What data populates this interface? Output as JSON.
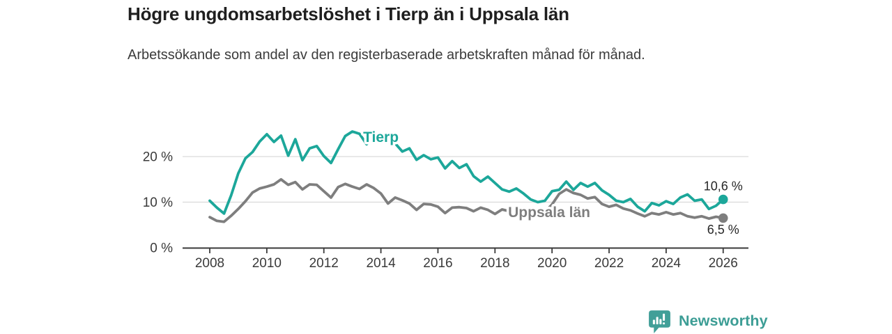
{
  "header": {
    "title": "Högre ungdomsarbetslöshet i Tierp än i Uppsala län",
    "subtitle": "Arbetssökande som andel av den registerbaserade arbetskraften månad för månad."
  },
  "footer": {
    "brand": "Newsworthy"
  },
  "colors": {
    "tierp": "#1CA79A",
    "uppsala": "#7E7E7E",
    "grid": "#D9D9D9",
    "axis": "#3A3A3A",
    "annotation_text": "#262626",
    "brand": "#3C9D95",
    "background": "#FFFFFF"
  },
  "chart_data": {
    "type": "line",
    "title": "Högre ungdomsarbetslöshet i Tierp än i Uppsala län",
    "subtitle": "Arbetssökande som andel av den registerbaserade arbetskraften månad för månad.",
    "xlabel": "",
    "ylabel": "",
    "grid": "horizontal-only",
    "legend_position": "inline-labels",
    "x_start": 2008,
    "x_step": 0.25,
    "x_range": [
      2008,
      2026
    ],
    "ylim": [
      0,
      27
    ],
    "x_ticks": [
      2008,
      2010,
      2012,
      2014,
      2016,
      2018,
      2020,
      2022,
      2024,
      2026
    ],
    "x_tick_labels": [
      "2008",
      "2010",
      "2012",
      "2014",
      "2016",
      "2018",
      "2020",
      "2022",
      "2024",
      "2026"
    ],
    "y_ticks": [
      0,
      10,
      20
    ],
    "y_tick_labels": [
      "0 %",
      "10 %",
      "20 %"
    ],
    "series": [
      {
        "name": "Uppsala län",
        "color": "#7E7E7E",
        "end_label": "6,5 %",
        "end_label_side": "below",
        "label_anchor": {
          "x": 2019.9,
          "y": 7.8
        },
        "values": [
          6.7,
          5.9,
          5.7,
          7.0,
          8.5,
          10.2,
          12.1,
          13.0,
          13.4,
          13.9,
          15.0,
          13.8,
          14.4,
          12.8,
          13.9,
          13.8,
          12.4,
          11.0,
          13.3,
          14.0,
          13.4,
          12.9,
          13.9,
          13.1,
          11.9,
          9.7,
          11.0,
          10.4,
          9.7,
          8.3,
          9.6,
          9.5,
          9.0,
          7.6,
          8.8,
          8.9,
          8.7,
          8.0,
          8.8,
          8.3,
          7.4,
          8.4,
          8.0,
          7.9,
          7.7,
          7.6,
          7.5,
          7.9,
          9.5,
          11.8,
          12.8,
          12.0,
          11.6,
          10.8,
          11.1,
          9.6,
          9.0,
          9.4,
          8.6,
          8.2,
          7.5,
          6.9,
          7.6,
          7.3,
          7.8,
          7.3,
          7.6,
          6.9,
          6.6,
          6.9,
          6.4,
          6.8,
          6.5
        ]
      },
      {
        "name": "Tierp",
        "color": "#1CA79A",
        "end_label": "10,6 %",
        "end_label_side": "above",
        "label_anchor": {
          "x": 2014.0,
          "y": 24.3
        },
        "values": [
          10.3,
          8.8,
          7.5,
          11.5,
          16.3,
          19.6,
          21.0,
          23.3,
          24.9,
          23.2,
          24.6,
          20.2,
          23.8,
          19.2,
          21.8,
          22.3,
          20.1,
          18.6,
          21.6,
          24.5,
          25.5,
          25.0,
          22.7,
          24.2,
          23.6,
          23.1,
          22.9,
          21.1,
          21.8,
          19.3,
          20.3,
          19.4,
          19.8,
          17.4,
          19.0,
          17.5,
          18.3,
          15.7,
          14.5,
          15.6,
          14.2,
          12.8,
          12.3,
          13.0,
          11.9,
          10.6,
          10.0,
          10.3,
          12.4,
          12.7,
          14.5,
          12.7,
          14.2,
          13.4,
          14.2,
          12.6,
          11.6,
          10.3,
          10.0,
          10.7,
          9.0,
          8.0,
          9.8,
          9.3,
          10.2,
          9.6,
          11.0,
          11.7,
          10.3,
          10.6,
          8.5,
          9.2,
          10.6
        ]
      }
    ]
  }
}
